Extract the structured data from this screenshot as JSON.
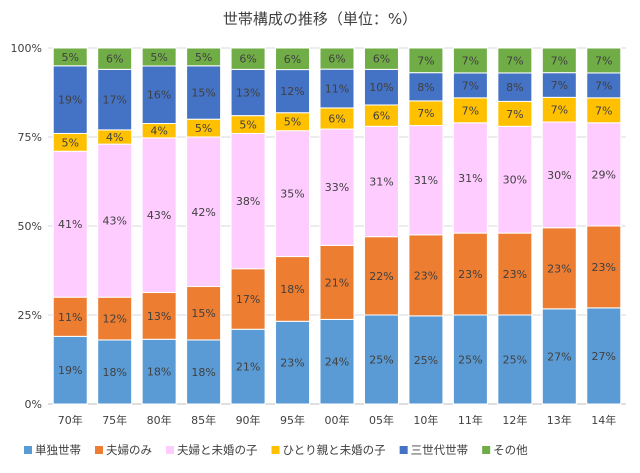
{
  "chart_data": {
    "type": "bar",
    "stacked": true,
    "percent": true,
    "title": "世帯構成の推移（単位：%）",
    "xlabel": "",
    "ylabel": "",
    "ylim": [
      0,
      100
    ],
    "y_ticks": [
      "0%",
      "25%",
      "50%",
      "75%",
      "100%"
    ],
    "categories": [
      "70年",
      "75年",
      "80年",
      "85年",
      "90年",
      "95年",
      "00年",
      "05年",
      "10年",
      "11年",
      "12年",
      "13年",
      "14年"
    ],
    "series": [
      {
        "name": "単独世帯",
        "color": "#5B9BD5",
        "values": [
          19,
          18,
          18,
          18,
          21,
          23,
          24,
          25,
          25,
          25,
          25,
          27,
          27
        ]
      },
      {
        "name": "夫婦のみ",
        "color": "#ED7D31",
        "values": [
          11,
          12,
          13,
          15,
          17,
          18,
          21,
          22,
          23,
          23,
          23,
          23,
          23
        ]
      },
      {
        "name": "夫婦と未婚の子",
        "color": "#FFCCFF",
        "values": [
          41,
          43,
          43,
          42,
          38,
          35,
          33,
          31,
          31,
          31,
          30,
          30,
          29
        ]
      },
      {
        "name": "ひとり親と未婚の子",
        "color": "#FFC000",
        "values": [
          5,
          4,
          4,
          5,
          5,
          5,
          6,
          6,
          7,
          7,
          7,
          7,
          7
        ]
      },
      {
        "name": "三世代世帯",
        "color": "#4472C4",
        "values": [
          19,
          17,
          16,
          15,
          13,
          12,
          11,
          10,
          8,
          7,
          8,
          7,
          7
        ]
      },
      {
        "name": "その他",
        "color": "#70AD47",
        "values": [
          5,
          6,
          5,
          5,
          6,
          6,
          6,
          6,
          7,
          7,
          7,
          7,
          7
        ]
      }
    ],
    "data_label_suffix": "%",
    "grid": true,
    "legend_position": "bottom"
  }
}
